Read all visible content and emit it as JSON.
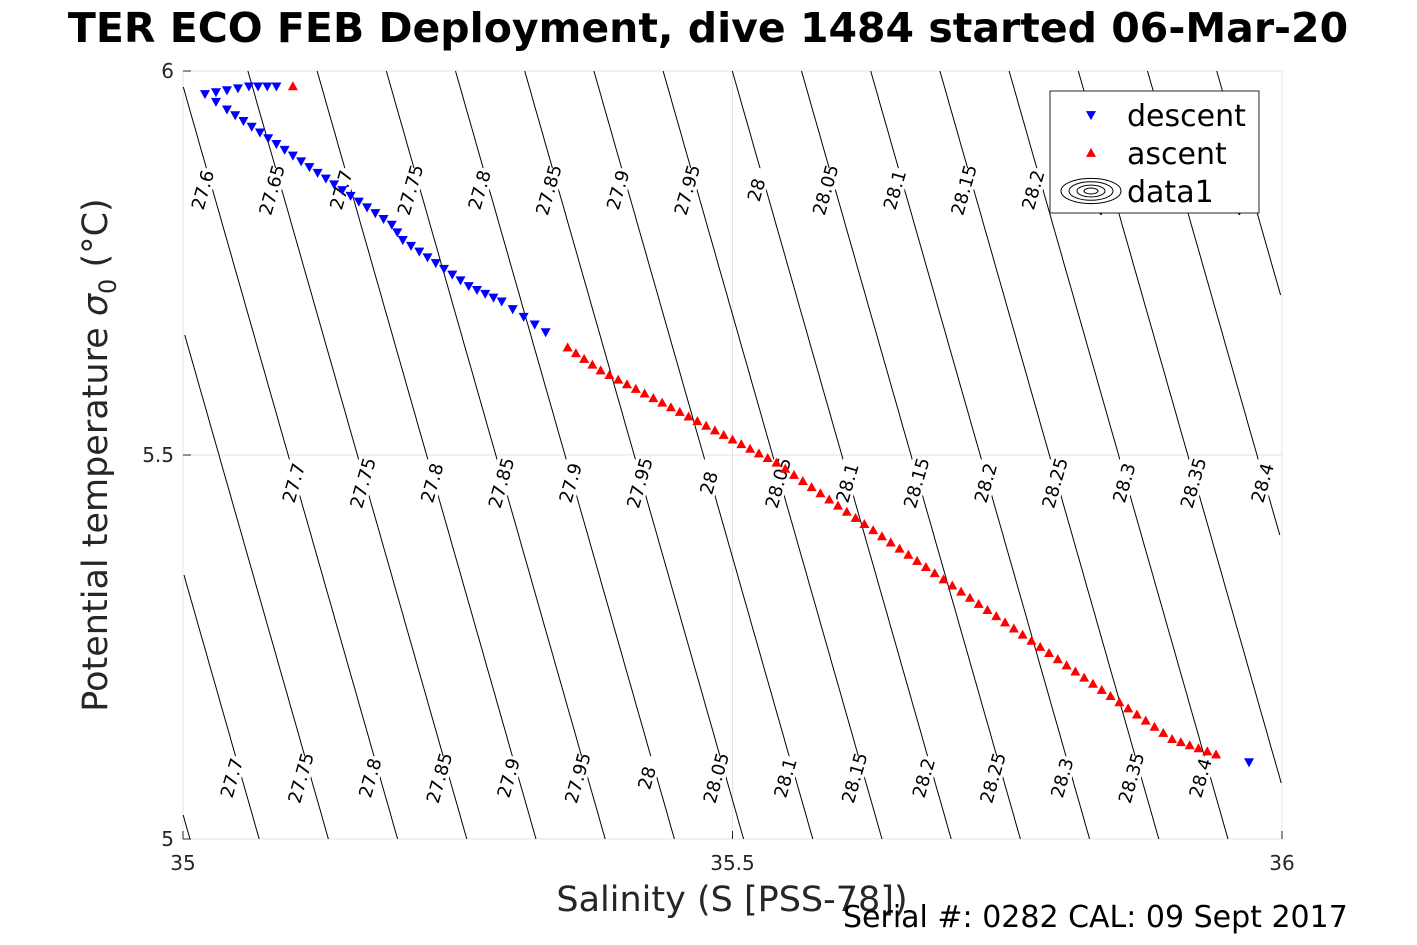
{
  "chart_data": {
    "type": "scatter",
    "title": "TER ECO FEB Deployment, dive 1484 started 06-Mar-20",
    "xlabel": "Salinity (S [PSS-78])",
    "ylabel_text": "Potential temperature ",
    "ylabel_symbol": "σ",
    "ylabel_subscript": "0",
    "ylabel_unit": " (°C)",
    "xlim": [
      35,
      36
    ],
    "ylim": [
      5,
      6
    ],
    "xticks": [
      "35",
      "35.5",
      "36"
    ],
    "yticks": [
      "5",
      "5.5",
      "6"
    ],
    "grid": true,
    "legend_position": "top-right",
    "series": [
      {
        "name": "descent",
        "marker": "triangle-down",
        "color": "#0000ff",
        "x": [
          35.085,
          35.06,
          35.04,
          35.02,
          35.04,
          35.07,
          35.1,
          35.13,
          35.16,
          35.19,
          35.2,
          35.23,
          35.26,
          35.29,
          35.31,
          35.33,
          35.97
        ],
        "y": [
          5.98,
          5.98,
          5.975,
          5.97,
          5.95,
          5.92,
          5.89,
          5.86,
          5.83,
          5.8,
          5.78,
          5.75,
          5.72,
          5.7,
          5.68,
          5.66,
          5.1
        ]
      },
      {
        "name": "ascent",
        "marker": "triangle-up",
        "color": "#ff0000",
        "x": [
          35.1,
          35.35,
          35.38,
          35.42,
          35.46,
          35.5,
          35.54,
          35.58,
          35.62,
          35.66,
          35.7,
          35.74,
          35.78,
          35.82,
          35.86,
          35.9,
          35.94
        ],
        "y": [
          5.98,
          5.64,
          5.61,
          5.58,
          5.55,
          5.52,
          5.49,
          5.45,
          5.41,
          5.37,
          5.33,
          5.29,
          5.25,
          5.21,
          5.17,
          5.13,
          5.11
        ]
      }
    ],
    "contours": {
      "name": "data1",
      "color": "#000000",
      "levels": [
        "27.6",
        "27.65",
        "27.7",
        "27.75",
        "27.8",
        "27.85",
        "27.9",
        "27.95",
        "28",
        "28.05",
        "28.1",
        "28.15",
        "28.2",
        "28.25",
        "28.3",
        "28.35",
        "28.4"
      ]
    }
  },
  "footer": {
    "serial": "Serial #: 0282  CAL: 09 Sept 2017"
  }
}
